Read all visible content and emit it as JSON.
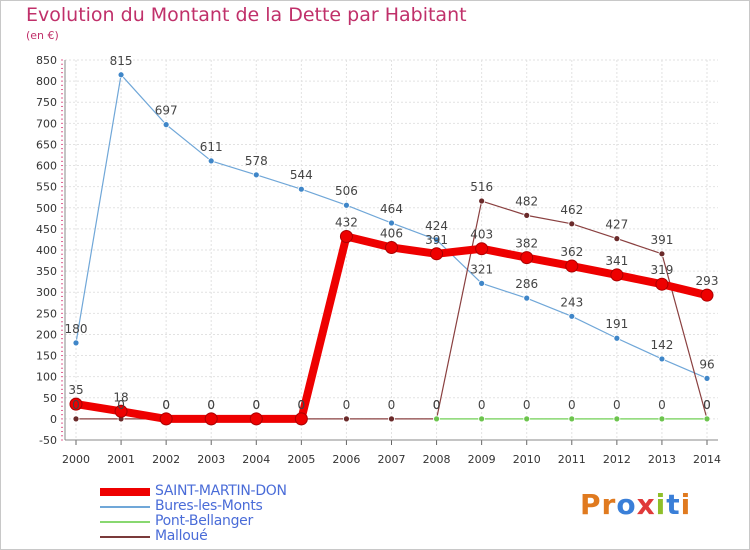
{
  "header": {
    "title": "Evolution du Montant de la Dette par Habitant",
    "subtitle": "(en €)"
  },
  "logo": {
    "text": "Proxiti",
    "colors": [
      "#e07a1f",
      "#e07a1f",
      "#3a7fd8",
      "#e03a3a",
      "#8fbf2a",
      "#3a7fd8",
      "#e07a1f"
    ]
  },
  "chart_data": {
    "type": "line",
    "x": [
      2000,
      2001,
      2002,
      2003,
      2004,
      2005,
      2006,
      2007,
      2008,
      2009,
      2010,
      2011,
      2012,
      2013,
      2014
    ],
    "ylim": [
      -50,
      850
    ],
    "yticks": [
      -50,
      0,
      50,
      100,
      150,
      200,
      250,
      300,
      350,
      400,
      450,
      500,
      550,
      600,
      650,
      700,
      750,
      800,
      850
    ],
    "grid": true,
    "legend": "bottom-left",
    "series": [
      {
        "name": "SAINT-MARTIN-DON",
        "color": "#ee0000",
        "values": [
          35,
          18,
          0,
          0,
          0,
          0,
          432,
          406,
          391,
          403,
          382,
          362,
          341,
          319,
          293
        ]
      },
      {
        "name": "Bures-les-Monts",
        "color": "#70a7d8",
        "values": [
          180,
          815,
          697,
          611,
          578,
          544,
          506,
          464,
          424,
          321,
          286,
          243,
          191,
          142,
          96
        ]
      },
      {
        "name": "Pont-Bellanger",
        "color": "#88d870",
        "values": [
          null,
          null,
          null,
          null,
          null,
          null,
          null,
          null,
          0,
          0,
          0,
          0,
          0,
          0,
          0
        ]
      },
      {
        "name": "Malloué",
        "color": "#7a3a3a",
        "values": [
          0,
          0,
          0,
          0,
          0,
          0,
          0,
          0,
          0,
          516,
          482,
          462,
          427,
          391,
          0
        ]
      }
    ]
  }
}
